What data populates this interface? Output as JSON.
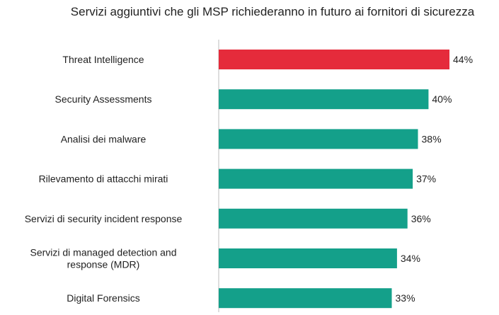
{
  "chart_data": {
    "type": "bar",
    "orientation": "horizontal",
    "title": "Servizi aggiuntivi che gli MSP richiederanno in futuro ai fornitori di sicurezza",
    "categories": [
      "Threat Intelligence",
      "Security Assessments",
      "Analisi dei malware",
      "Rilevamento di attacchi mirati",
      "Servizi di security incident response",
      "Servizi di managed detection and\nresponse (MDR)",
      "Digital Forensics"
    ],
    "values": [
      44,
      40,
      38,
      37,
      36,
      34,
      33
    ],
    "value_labels": [
      "44%",
      "40%",
      "38%",
      "37%",
      "36%",
      "34%",
      "33%"
    ],
    "xlim": [
      0,
      44
    ],
    "highlight_index": 0,
    "colors": {
      "highlight": "#e52b3b",
      "default": "#14a08a",
      "axis": "#bbbbbb"
    },
    "grid": false,
    "legend": "none"
  }
}
